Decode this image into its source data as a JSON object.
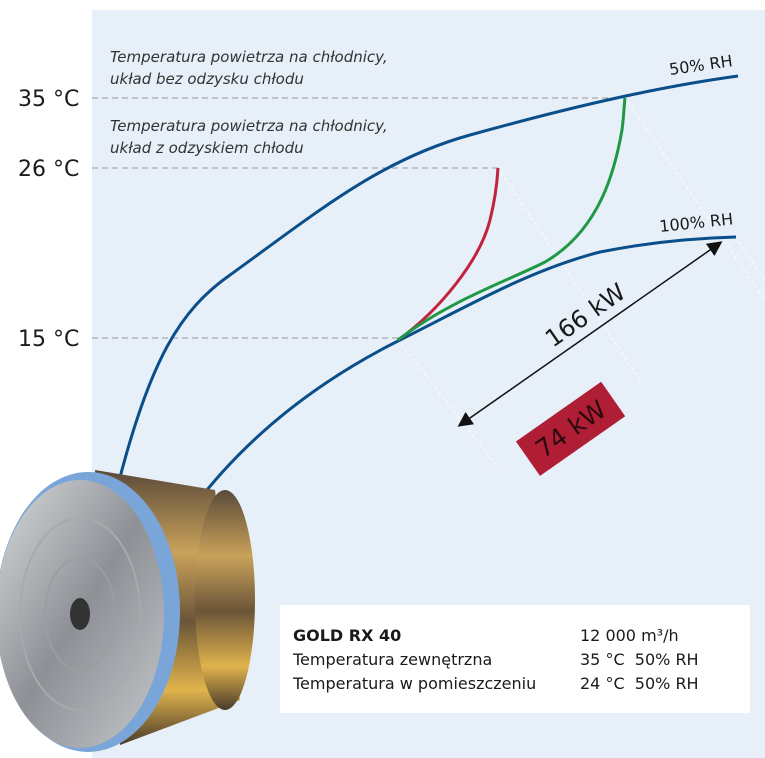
{
  "temperature_labels": [
    "35 °C",
    "26 °C",
    "15 °C"
  ],
  "annotations": {
    "without_recovery": [
      "Temperatura powietrza na chłodnicy,",
      "układ bez odzysku chłodu"
    ],
    "with_recovery": [
      "Temperatura powietrza na chłodnicy,",
      "układ z odzyskiem chłodu"
    ]
  },
  "curve_labels": {
    "rh50": "50% RH",
    "rh100": "100% RH"
  },
  "power": {
    "total": "166 kW",
    "recovered": "74 kW"
  },
  "info": {
    "rows": [
      [
        "GOLD RX 40",
        "12 000 m³/h"
      ],
      [
        "Temperatura zewnętrzna",
        "35 °C  50% RH"
      ],
      [
        "Temperatura w pomieszczeniu",
        "24 °C  50% RH"
      ]
    ]
  }
}
